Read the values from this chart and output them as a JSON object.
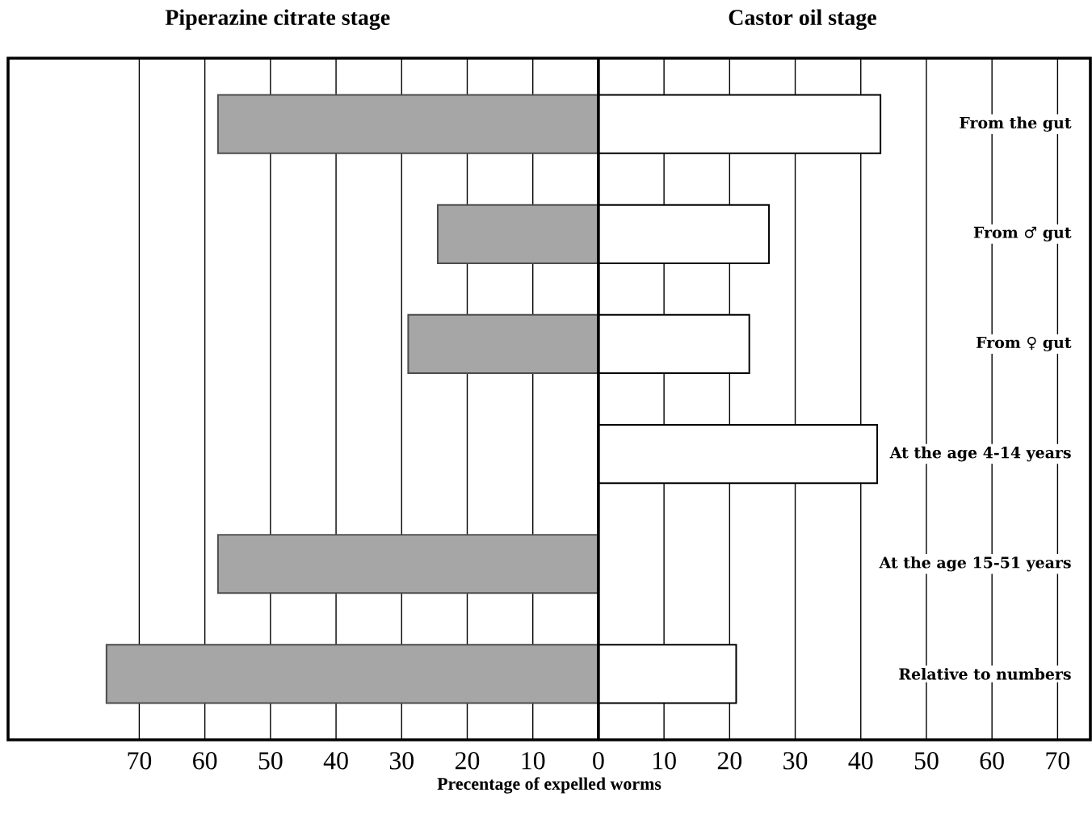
{
  "chart_data": {
    "type": "bar",
    "orientation": "horizontal",
    "categories": [
      "From the gut",
      "From ♂ gut",
      "From ♀ gut",
      "At the age 4-14 years",
      "At the age 15-51 years",
      "Relative to numbers"
    ],
    "series": [
      {
        "name": "Piperazine citrate stage",
        "color": "#a6a6a6",
        "values": [
          -58,
          -24.5,
          -29,
          null,
          -58,
          -75
        ]
      },
      {
        "name": "Castor oil stage",
        "color": "#ffffff",
        "values": [
          43,
          26,
          23,
          42.5,
          null,
          21
        ]
      }
    ],
    "xlabel": "Precentage of expelled worms",
    "xlim": [
      -90,
      75
    ],
    "xticks": [
      {
        "value": -70,
        "label": "70"
      },
      {
        "value": -60,
        "label": "60"
      },
      {
        "value": -50,
        "label": "50"
      },
      {
        "value": -40,
        "label": "40"
      },
      {
        "value": -30,
        "label": "30"
      },
      {
        "value": -20,
        "label": "20"
      },
      {
        "value": -10,
        "label": "10"
      },
      0,
      10,
      20,
      30,
      40,
      50,
      60,
      70
    ],
    "grid": "x",
    "stacked": true
  }
}
